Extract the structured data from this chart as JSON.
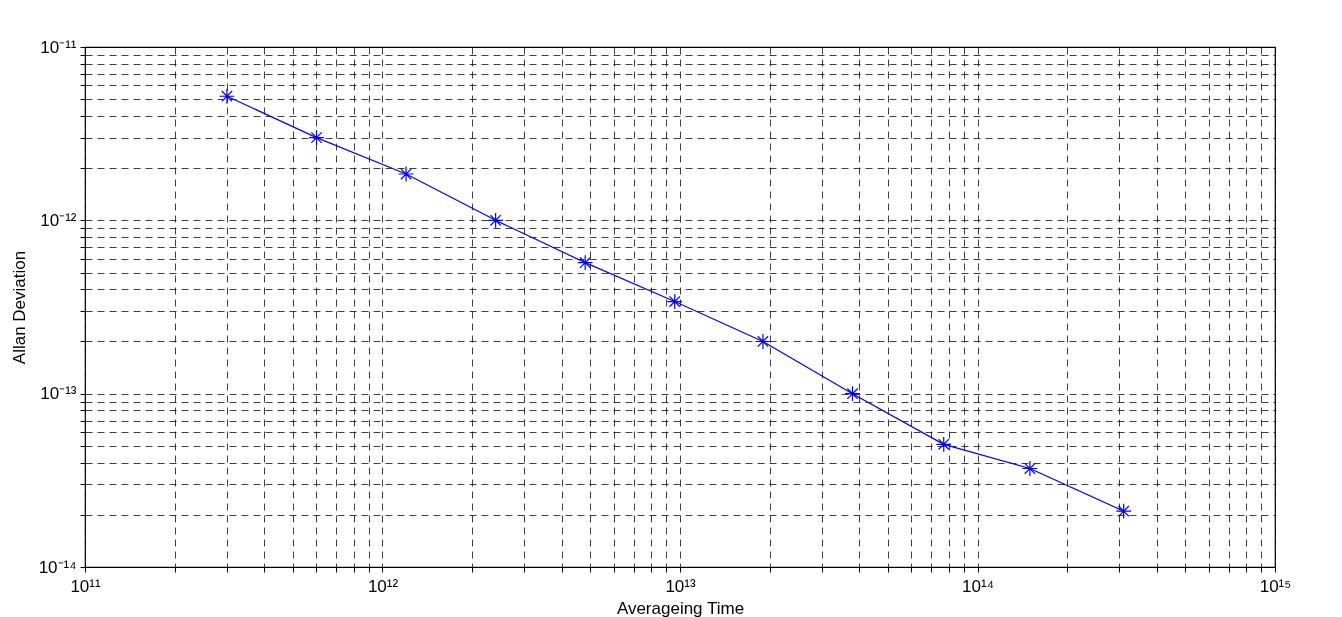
{
  "chart_data": {
    "type": "line",
    "xlabel": "Averageing Time",
    "ylabel": "Allan Deviation",
    "log": "xy",
    "grid": true,
    "marker": "cross",
    "line_style": "solid",
    "x": [
      300000000000.0,
      600000000000.0,
      1200000000000.0,
      2400000000000.0,
      4800000000000.0,
      9600000000000.0,
      19000000000000.0,
      38000000000000.0,
      77000000000000.0,
      150000000000000.0,
      310000000000000.0
    ],
    "series": [
      {
        "color": "#0000ff",
        "values": [
          5.2e-12,
          3e-12,
          1.85e-12,
          1e-12,
          5.7e-13,
          3.4e-13,
          2e-13,
          1e-13,
          5.1e-14,
          3.7e-14,
          2.1e-14
        ]
      }
    ],
    "xlim": [
      100000000000.0,
      1000000000000000.0
    ],
    "xticks": [
      {
        "value": 100000000000.0,
        "label": "10¹¹"
      },
      {
        "value": 200000000000.0,
        "label": null
      },
      {
        "value": 300000000000.0,
        "label": null
      },
      {
        "value": 400000000000.0,
        "label": null
      },
      {
        "value": 500000000000.0,
        "label": null
      },
      {
        "value": 600000000000.0,
        "label": null
      },
      {
        "value": 700000000000.0,
        "label": null
      },
      {
        "value": 800000000000.0,
        "label": null
      },
      {
        "value": 900000000000.0,
        "label": null
      },
      {
        "value": 1000000000000.0,
        "label": "10¹²"
      },
      {
        "value": 2000000000000.0,
        "label": null
      },
      {
        "value": 3000000000000.0,
        "label": null
      },
      {
        "value": 4000000000000.0,
        "label": null
      },
      {
        "value": 5000000000000.0,
        "label": null
      },
      {
        "value": 6000000000000.0,
        "label": null
      },
      {
        "value": 7000000000000.0,
        "label": null
      },
      {
        "value": 8000000000000.0,
        "label": null
      },
      {
        "value": 9000000000000.0,
        "label": null
      },
      {
        "value": 10000000000000.0,
        "label": "10¹³"
      },
      {
        "value": 20000000000000.0,
        "label": null
      },
      {
        "value": 30000000000000.0,
        "label": null
      },
      {
        "value": 40000000000000.0,
        "label": null
      },
      {
        "value": 50000000000000.0,
        "label": null
      },
      {
        "value": 60000000000000.0,
        "label": null
      },
      {
        "value": 70000000000000.0,
        "label": null
      },
      {
        "value": 80000000000000.0,
        "label": null
      },
      {
        "value": 90000000000000.0,
        "label": null
      },
      {
        "value": 100000000000000.0,
        "label": "10¹⁴"
      },
      {
        "value": 200000000000000.0,
        "label": null
      },
      {
        "value": 300000000000000.0,
        "label": null
      },
      {
        "value": 400000000000000.0,
        "label": null
      },
      {
        "value": 500000000000000.0,
        "label": null
      },
      {
        "value": 600000000000000.0,
        "label": null
      },
      {
        "value": 700000000000000.0,
        "label": null
      },
      {
        "value": 800000000000000.0,
        "label": null
      },
      {
        "value": 900000000000000.0,
        "label": null
      },
      {
        "value": 1000000000000000.0,
        "label": "10¹⁵"
      }
    ],
    "ylim": [
      1e-14,
      1e-11
    ],
    "yticks": [
      {
        "value": 1e-14,
        "label": "10⁻¹⁴"
      },
      {
        "value": 2e-14,
        "label": null
      },
      {
        "value": 3e-14,
        "label": null
      },
      {
        "value": 4e-14,
        "label": null
      },
      {
        "value": 5e-14,
        "label": null
      },
      {
        "value": 6e-14,
        "label": null
      },
      {
        "value": 7e-14,
        "label": null
      },
      {
        "value": 8e-14,
        "label": null
      },
      {
        "value": 9e-14,
        "label": null
      },
      {
        "value": 1e-13,
        "label": "10⁻¹³"
      },
      {
        "value": 2e-13,
        "label": null
      },
      {
        "value": 3e-13,
        "label": null
      },
      {
        "value": 4e-13,
        "label": null
      },
      {
        "value": 5e-13,
        "label": null
      },
      {
        "value": 6e-13,
        "label": null
      },
      {
        "value": 7e-13,
        "label": null
      },
      {
        "value": 8e-13,
        "label": null
      },
      {
        "value": 9e-13,
        "label": null
      },
      {
        "value": 1e-12,
        "label": "10⁻¹²"
      },
      {
        "value": 2e-12,
        "label": null
      },
      {
        "value": 3e-12,
        "label": null
      },
      {
        "value": 4e-12,
        "label": null
      },
      {
        "value": 5e-12,
        "label": null
      },
      {
        "value": 6e-12,
        "label": null
      },
      {
        "value": 7e-12,
        "label": null
      },
      {
        "value": 8e-12,
        "label": null
      },
      {
        "value": 9e-12,
        "label": null
      },
      {
        "value": 1e-11,
        "label": "10⁻¹¹"
      }
    ]
  }
}
